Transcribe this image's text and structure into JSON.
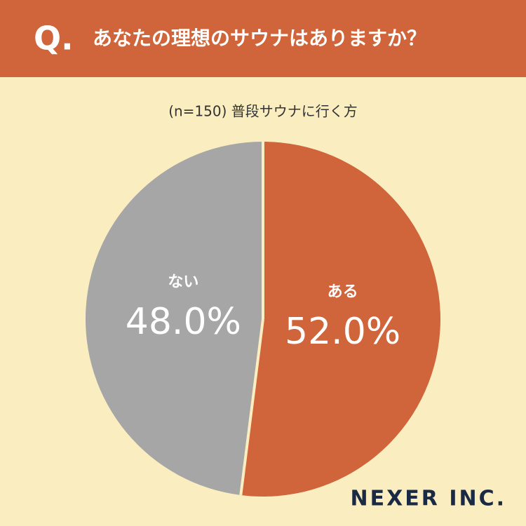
{
  "chart_data": {
    "type": "pie",
    "question_label": "Q.",
    "title": "あなたの理想のサウナはありますか？",
    "subtitle": "(n=150) 普段サウナに行く方",
    "categories": [
      "ある",
      "ない"
    ],
    "values": [
      52.0,
      48.0
    ],
    "value_labels": [
      "52.0%",
      "48.0%"
    ],
    "colors": [
      "#d0643a",
      "#a6a6a6"
    ],
    "logo": "NEXER INC."
  }
}
